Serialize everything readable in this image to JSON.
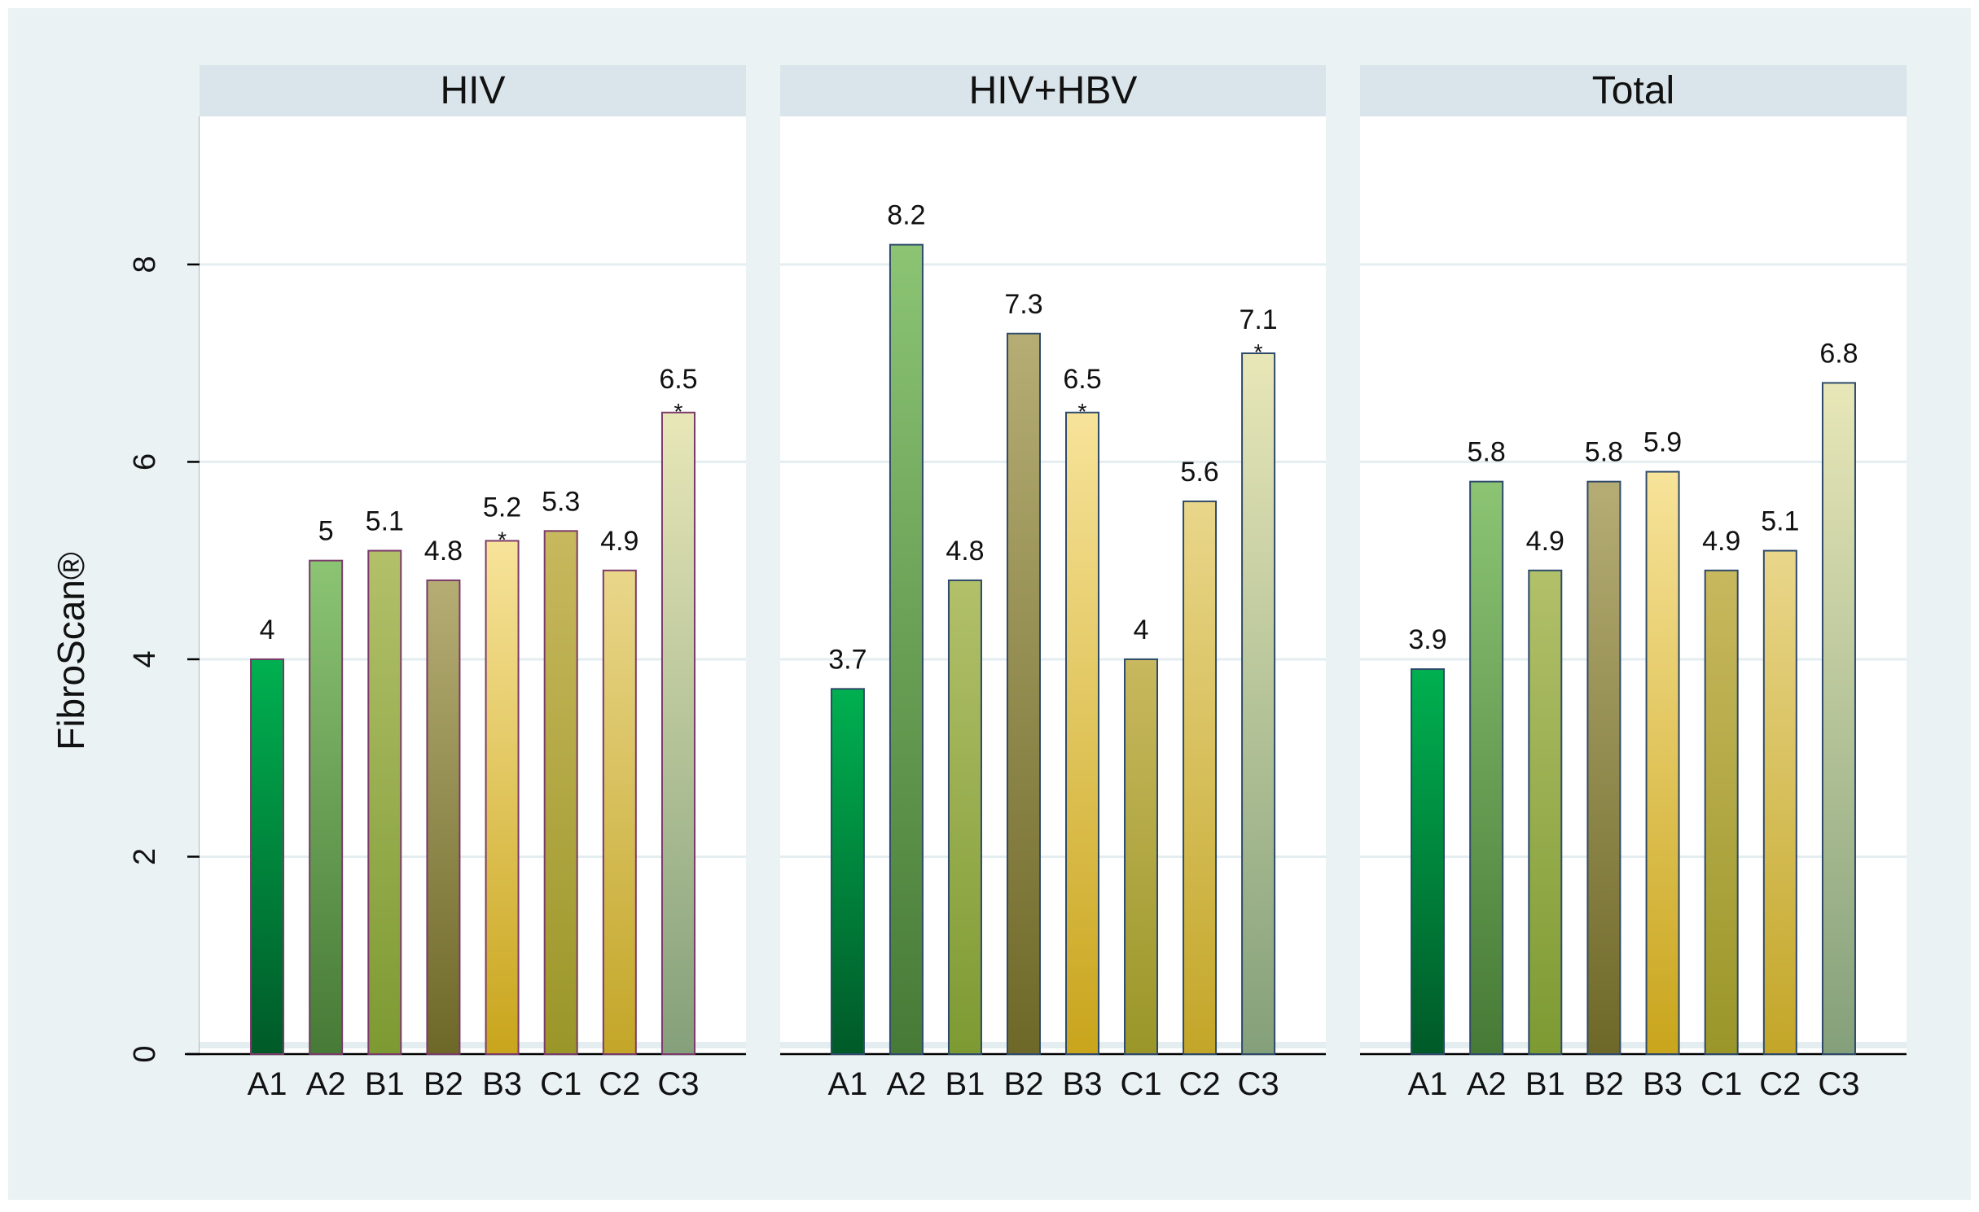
{
  "chart_data": {
    "type": "bar",
    "ylabel": "FibroScan®",
    "xlabel": "",
    "ylim": [
      0,
      9.5
    ],
    "yticks": [
      0,
      2,
      4,
      6,
      8
    ],
    "grid": true,
    "categories": [
      "A1",
      "A2",
      "B1",
      "B2",
      "B3",
      "C1",
      "C2",
      "C3"
    ],
    "panels": [
      {
        "title": "HIV",
        "values": [
          4.0,
          5.0,
          5.1,
          4.8,
          5.2,
          5.3,
          4.9,
          6.5
        ],
        "labels": [
          "4",
          "5",
          "5.1",
          "4.8",
          "5.2",
          "5.3",
          "4.9",
          "6.5"
        ],
        "significant": [
          false,
          false,
          false,
          false,
          true,
          false,
          false,
          true
        ]
      },
      {
        "title": "HIV+HBV",
        "values": [
          3.7,
          8.2,
          4.8,
          7.3,
          6.5,
          4.0,
          5.6,
          7.1
        ],
        "labels": [
          "3.7",
          "8.2",
          "4.8",
          "7.3",
          "6.5",
          "4",
          "5.6",
          "7.1"
        ],
        "significant": [
          false,
          false,
          false,
          false,
          true,
          false,
          false,
          true
        ]
      },
      {
        "title": "Total",
        "values": [
          3.9,
          5.8,
          4.9,
          5.8,
          5.9,
          4.9,
          5.1,
          6.8
        ],
        "labels": [
          "3.9",
          "5.8",
          "4.9",
          "5.8",
          "5.9",
          "4.9",
          "5.1",
          "6.8"
        ],
        "significant": [
          false,
          false,
          false,
          false,
          false,
          false,
          false,
          false
        ]
      }
    ],
    "significance_marker": "*"
  },
  "colors": {
    "outer_background": "#ffffff",
    "figure_background": "#eaf2f3",
    "panel_header": "#d9e5ea",
    "plot_background": "#ffffff",
    "gridline": "#e4eef1",
    "axis": "#000000",
    "bar_outline_hiv": "#7b3a6a",
    "bar_outline_other": "#2e4a6a",
    "bars": {
      "A1": [
        "#00b050",
        "#005a28"
      ],
      "A2": [
        "#8cc474",
        "#467a36"
      ],
      "B1": [
        "#b2c06a",
        "#7d9a32"
      ],
      "B2": [
        "#b5ad74",
        "#6e6828"
      ],
      "B3": [
        "#f7e39a",
        "#c9a51c"
      ],
      "C1": [
        "#c8b85e",
        "#9a9628"
      ],
      "C2": [
        "#e9d68a",
        "#c3a628"
      ],
      "C3": [
        "#e8e7b8",
        "#84a07a"
      ]
    }
  }
}
